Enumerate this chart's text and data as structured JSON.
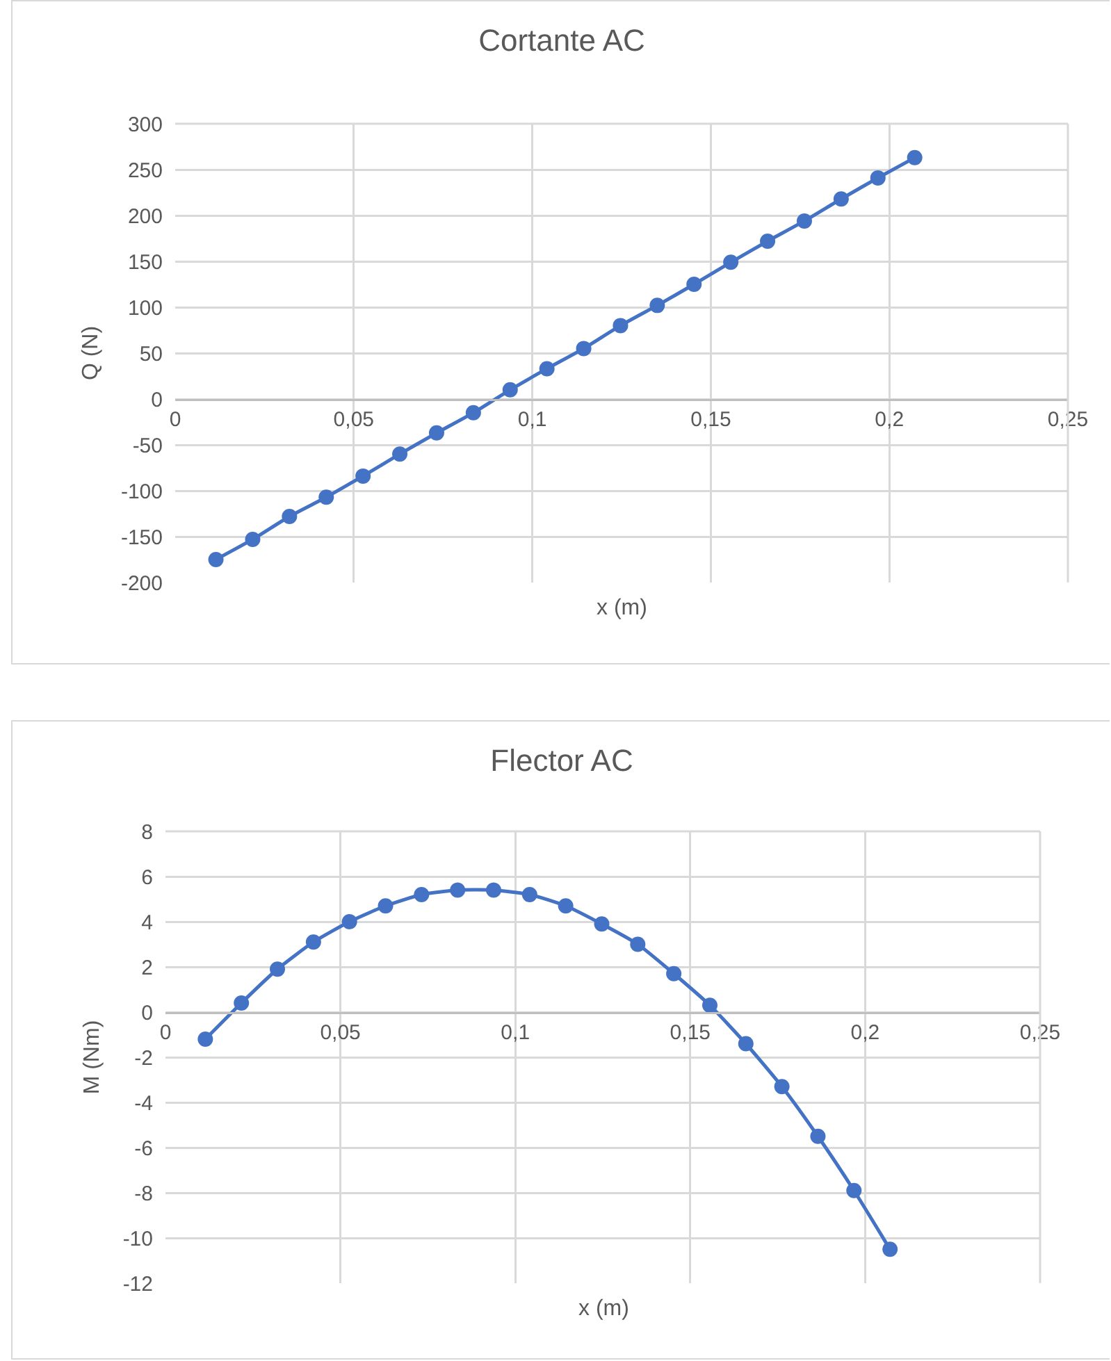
{
  "chart_data": [
    {
      "type": "line",
      "title": "Cortante AC",
      "xlabel": "x (m)",
      "ylabel": "Q (N)",
      "x": [
        0.0114,
        0.0217,
        0.032,
        0.0423,
        0.0526,
        0.0629,
        0.0732,
        0.0835,
        0.0938,
        0.1041,
        0.1144,
        0.1247,
        0.135,
        0.1453,
        0.1556,
        0.1659,
        0.1762,
        0.1865,
        0.1968,
        0.2071
      ],
      "series": [
        {
          "color": "#4472c4",
          "values": [
            -175,
            -153,
            -128,
            -107,
            -84,
            -60,
            -37,
            -15,
            10,
            33,
            55,
            80,
            102,
            125,
            149,
            172,
            194,
            218,
            241,
            263
          ]
        }
      ],
      "xlim": [
        0,
        0.25
      ],
      "xticks": [
        0,
        {
          "value": 0.05,
          "label": "0,05"
        },
        {
          "value": 0.1,
          "label": "0,1"
        },
        {
          "value": 0.15,
          "label": "0,15"
        },
        {
          "value": 0.2,
          "label": "0,2"
        },
        {
          "value": 0.25,
          "label": "0,25"
        }
      ],
      "ylim": [
        -200,
        300
      ],
      "yticks": [
        -200,
        -150,
        -100,
        -50,
        0,
        50,
        100,
        150,
        200,
        250,
        300
      ],
      "grid": true,
      "marker": "circle",
      "line_style": "solid"
    },
    {
      "type": "line",
      "title": "Flector AC",
      "xlabel": "x (m)",
      "ylabel": "M (Nm)",
      "x": [
        0.0114,
        0.0217,
        0.032,
        0.0423,
        0.0526,
        0.0629,
        0.0732,
        0.0835,
        0.0938,
        0.1041,
        0.1144,
        0.1247,
        0.135,
        0.1453,
        0.1556,
        0.1659,
        0.1762,
        0.1865,
        0.1968,
        0.2071
      ],
      "series": [
        {
          "color": "#4472c4",
          "values": [
            -1.2,
            0.4,
            1.9,
            3.1,
            4.0,
            4.7,
            5.2,
            5.4,
            5.4,
            5.2,
            4.7,
            3.9,
            3.0,
            1.7,
            0.3,
            -1.4,
            -3.3,
            -5.5,
            -7.9,
            -10.5
          ]
        }
      ],
      "xlim": [
        0,
        0.25
      ],
      "xticks": [
        0,
        {
          "value": 0.05,
          "label": "0,05"
        },
        {
          "value": 0.1,
          "label": "0,1"
        },
        {
          "value": 0.15,
          "label": "0,15"
        },
        {
          "value": 0.2,
          "label": "0,2"
        },
        {
          "value": 0.25,
          "label": "0,25"
        }
      ],
      "ylim": [
        -12,
        8
      ],
      "yticks": [
        -12,
        -10,
        -8,
        -6,
        -4,
        -2,
        0,
        2,
        4,
        6,
        8
      ],
      "grid": true,
      "marker": "circle",
      "line_style": "solid"
    }
  ]
}
